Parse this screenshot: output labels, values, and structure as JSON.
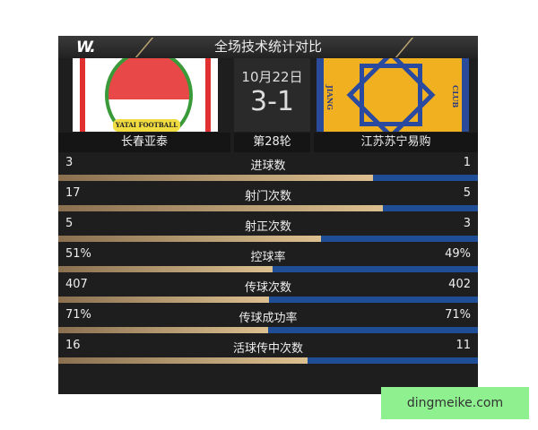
{
  "header": {
    "brand": "W.",
    "title": "全场技术统计对比"
  },
  "match": {
    "date": "10月22日",
    "score": "3-1",
    "round": "第28轮",
    "home": "长春亚泰",
    "away": "江苏苏宁易购",
    "home_logo_text": "YATAI FOOTBALL",
    "away_logo_text_left": "JIANG",
    "away_logo_text_right": "CLUB"
  },
  "colors": {
    "home_bar": "#c8a878",
    "away_bar": "#1f4e96"
  },
  "stats": [
    {
      "label": "进球数",
      "home": "3",
      "away": "1",
      "h": 3,
      "a": 1
    },
    {
      "label": "射门次数",
      "home": "17",
      "away": "5",
      "h": 17,
      "a": 5
    },
    {
      "label": "射正次数",
      "home": "5",
      "away": "3",
      "h": 5,
      "a": 3
    },
    {
      "label": "控球率",
      "home": "51%",
      "away": "49%",
      "h": 51,
      "a": 49
    },
    {
      "label": "传球次数",
      "home": "407",
      "away": "402",
      "h": 407,
      "a": 402
    },
    {
      "label": "传球成功率",
      "home": "71%",
      "away": "71%",
      "h": 71,
      "a": 71
    },
    {
      "label": "活球传中次数",
      "home": "16",
      "away": "11",
      "h": 16,
      "a": 11
    }
  ],
  "watermark": "dingmeike.com"
}
